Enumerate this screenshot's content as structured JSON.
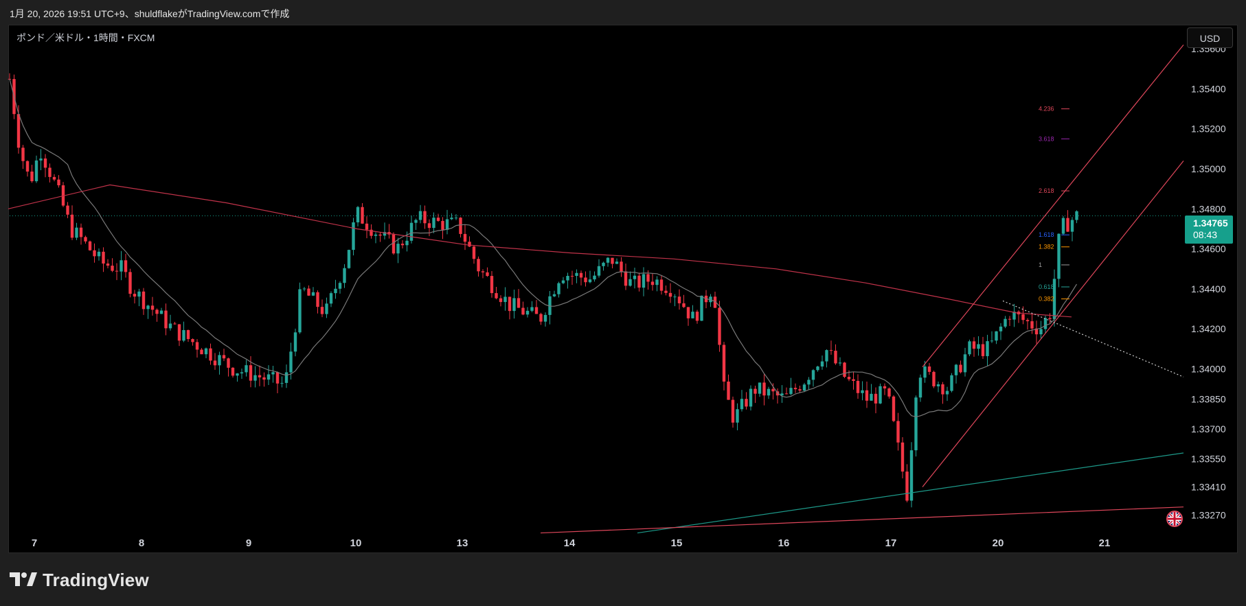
{
  "header": {
    "caption": "1月 20, 2026 19:51 UTC+9、shuldflakeがTradingView.comで作成"
  },
  "chart": {
    "symbol_line": "ポンド／米ドル・1時間・FXCM",
    "currency_button": "USD",
    "current_price": "1.34765",
    "countdown": "08:43",
    "fib_labels": [
      "4.236",
      "3.618",
      "2.618",
      "1.618",
      "1.382",
      "1",
      "0.618",
      "0.382"
    ]
  },
  "footer": {
    "brand": "TradingView",
    "logo_icon": "tradingview-logo-icon"
  },
  "colors": {
    "up": "#26a69a",
    "down": "#f23645",
    "ma_slow": "#c2334a",
    "ma_fast": "#7a7a7a",
    "channel": "#e0475b",
    "trend_teal": "#1d9a8a",
    "price_tag": "#16a08c"
  },
  "chart_data": {
    "type": "candlestick",
    "title": "ポンド／米ドル・1時間・FXCM",
    "y_ticks": [
      "1.35600",
      "1.35400",
      "1.35200",
      "1.35000",
      "1.34800",
      "1.34600",
      "1.34400",
      "1.34200",
      "1.34000",
      "1.33850",
      "1.33700",
      "1.33550",
      "1.33410",
      "1.33270"
    ],
    "x_ticks": [
      "7",
      "8",
      "9",
      "10",
      "13",
      "14",
      "15",
      "16",
      "17",
      "20",
      "21"
    ],
    "ylim": [
      1.3323,
      1.357
    ],
    "last_price": 1.34765,
    "path_points": [
      [
        0,
        1.3545
      ],
      [
        0.5,
        1.351
      ],
      [
        1.0,
        1.3493
      ],
      [
        1.5,
        1.351
      ],
      [
        2.0,
        1.3498
      ],
      [
        2.5,
        1.3485
      ],
      [
        3.0,
        1.347
      ],
      [
        3.5,
        1.3465
      ],
      [
        4.5,
        1.3453
      ],
      [
        5.5,
        1.345
      ],
      [
        6.0,
        1.344
      ],
      [
        7.0,
        1.343
      ],
      [
        8.0,
        1.342
      ],
      [
        9.5,
        1.341
      ],
      [
        11.0,
        1.34
      ],
      [
        12.0,
        1.3397
      ],
      [
        13.5,
        1.3392
      ],
      [
        14.3,
        1.344
      ],
      [
        15.5,
        1.3428
      ],
      [
        16.5,
        1.3455
      ],
      [
        17.0,
        1.3478
      ],
      [
        18.0,
        1.3468
      ],
      [
        19.0,
        1.346
      ],
      [
        20.0,
        1.3475
      ],
      [
        21.0,
        1.3473
      ],
      [
        22.0,
        1.3472
      ],
      [
        23.0,
        1.345
      ],
      [
        24.5,
        1.3432
      ],
      [
        26.0,
        1.3425
      ],
      [
        27.0,
        1.3448
      ],
      [
        28.5,
        1.3445
      ],
      [
        29.5,
        1.3455
      ],
      [
        30.5,
        1.3442
      ],
      [
        31.5,
        1.3445
      ],
      [
        32.5,
        1.344
      ],
      [
        33.5,
        1.3425
      ],
      [
        34.5,
        1.3442
      ],
      [
        35.0,
        1.339
      ],
      [
        35.5,
        1.3375
      ],
      [
        36.5,
        1.339
      ],
      [
        38.0,
        1.3385
      ],
      [
        39.0,
        1.3395
      ],
      [
        40.0,
        1.341
      ],
      [
        41.0,
        1.3395
      ],
      [
        42.0,
        1.3385
      ],
      [
        43.0,
        1.3388
      ],
      [
        44.0,
        1.3337
      ],
      [
        44.5,
        1.34
      ],
      [
        46.0,
        1.339
      ],
      [
        47.0,
        1.341
      ],
      [
        48.0,
        1.341
      ],
      [
        49.0,
        1.3428
      ],
      [
        50.5,
        1.342
      ],
      [
        51.0,
        1.3428
      ],
      [
        51.5,
        1.347
      ],
      [
        52.3,
        1.34765
      ]
    ]
  }
}
